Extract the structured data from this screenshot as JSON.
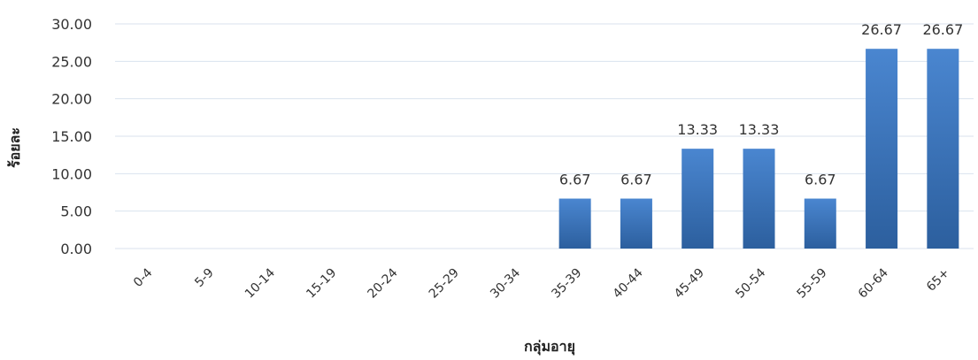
{
  "chart_data": {
    "type": "bar",
    "categories": [
      "0-4",
      "5-9",
      "10-14",
      "15-19",
      "20-24",
      "25-29",
      "30-34",
      "35-39",
      "40-44",
      "45-49",
      "50-54",
      "55-59",
      "60-64",
      "65+"
    ],
    "values": [
      0,
      0,
      0,
      0,
      0,
      0,
      0,
      6.67,
      6.67,
      13.33,
      13.33,
      6.67,
      26.67,
      26.67
    ],
    "data_labels": [
      "",
      "",
      "",
      "",
      "",
      "",
      "",
      "6.67",
      "6.67",
      "13.33",
      "13.33",
      "6.67",
      "26.67",
      "26.67"
    ],
    "y_ticks": [
      "0.00",
      "5.00",
      "10.00",
      "15.00",
      "20.00",
      "25.00",
      "30.00"
    ],
    "ylim": [
      0,
      30
    ],
    "title": "",
    "xlabel": "กลุ่มอายุ",
    "ylabel": "ร้อยละ",
    "grid": true,
    "legend": "none",
    "bar_color_top": "#4a86d0",
    "bar_color_bottom": "#2c5f9e"
  }
}
